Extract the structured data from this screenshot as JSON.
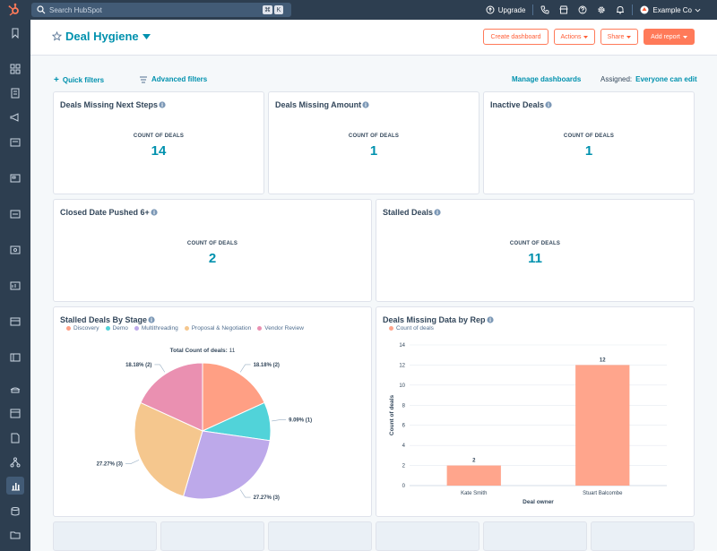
{
  "topbar": {
    "search_placeholder": "Search HubSpot",
    "shortcut_keys": [
      "⌘",
      "K"
    ],
    "upgrade_label": "Upgrade",
    "account_name": "Example Co"
  },
  "header": {
    "title": "Deal Hygiene",
    "buttons": {
      "create_dashboard": "Create dashboard",
      "actions": "Actions",
      "share": "Share",
      "add_report": "Add report"
    }
  },
  "filters": {
    "quick_filters": "Quick filters",
    "advanced_filters": "Advanced filters",
    "manage_dashboards": "Manage dashboards",
    "assigned_label": "Assigned:",
    "assigned_value": "Everyone can edit"
  },
  "kpi_cards": [
    {
      "title": "Deals Missing Next Steps",
      "label": "COUNT OF DEALS",
      "value": "14"
    },
    {
      "title": "Deals Missing Amount",
      "label": "COUNT OF DEALS",
      "value": "1"
    },
    {
      "title": "Inactive Deals",
      "label": "COUNT OF DEALS",
      "value": "1"
    },
    {
      "title": "Closed Date Pushed 6+",
      "label": "COUNT OF DEALS",
      "value": "2"
    },
    {
      "title": "Stalled Deals",
      "label": "COUNT OF DEALS",
      "value": "11"
    }
  ],
  "colors": {
    "accent": "#0091ae",
    "brand_orange": "#ff7a59",
    "nav_dark": "#2d3e50"
  },
  "chart_data": [
    {
      "type": "pie",
      "title": "Stalled Deals By Stage",
      "total_label": "Total Count of deals:",
      "total_value": "11",
      "legend": [
        "Discovery",
        "Demo",
        "Multithreading",
        "Proposal & Negotiation",
        "Vendor Review"
      ],
      "slices": [
        {
          "name": "Discovery",
          "value": 2,
          "label": "18.18% (2)",
          "color": "#ff9f84"
        },
        {
          "name": "Demo",
          "value": 1,
          "label": "9.09% (1)",
          "color": "#51d3d9"
        },
        {
          "name": "Multithreading",
          "value": 3,
          "label": "27.27% (3)",
          "color": "#bda9ea"
        },
        {
          "name": "Proposal & Negotiation",
          "value": 3,
          "label": "27.27% (3)",
          "color": "#f5c78e"
        },
        {
          "name": "Vendor Review",
          "value": 2,
          "label": "18.18% (2)",
          "color": "#ea90b1"
        }
      ]
    },
    {
      "type": "bar",
      "title": "Deals Missing Data by Rep",
      "legend": [
        "Count of deals"
      ],
      "categories": [
        "Kate Smith",
        "Stuart Balcombe"
      ],
      "values": [
        2,
        12
      ],
      "xlabel": "Deal owner",
      "ylabel": "Count of deals",
      "ylim": [
        0,
        14
      ],
      "yticks": [
        0,
        2,
        4,
        6,
        8,
        10,
        12,
        14
      ],
      "color": "#ffa58c",
      "grid": true,
      "legend_position": "top-left"
    }
  ]
}
